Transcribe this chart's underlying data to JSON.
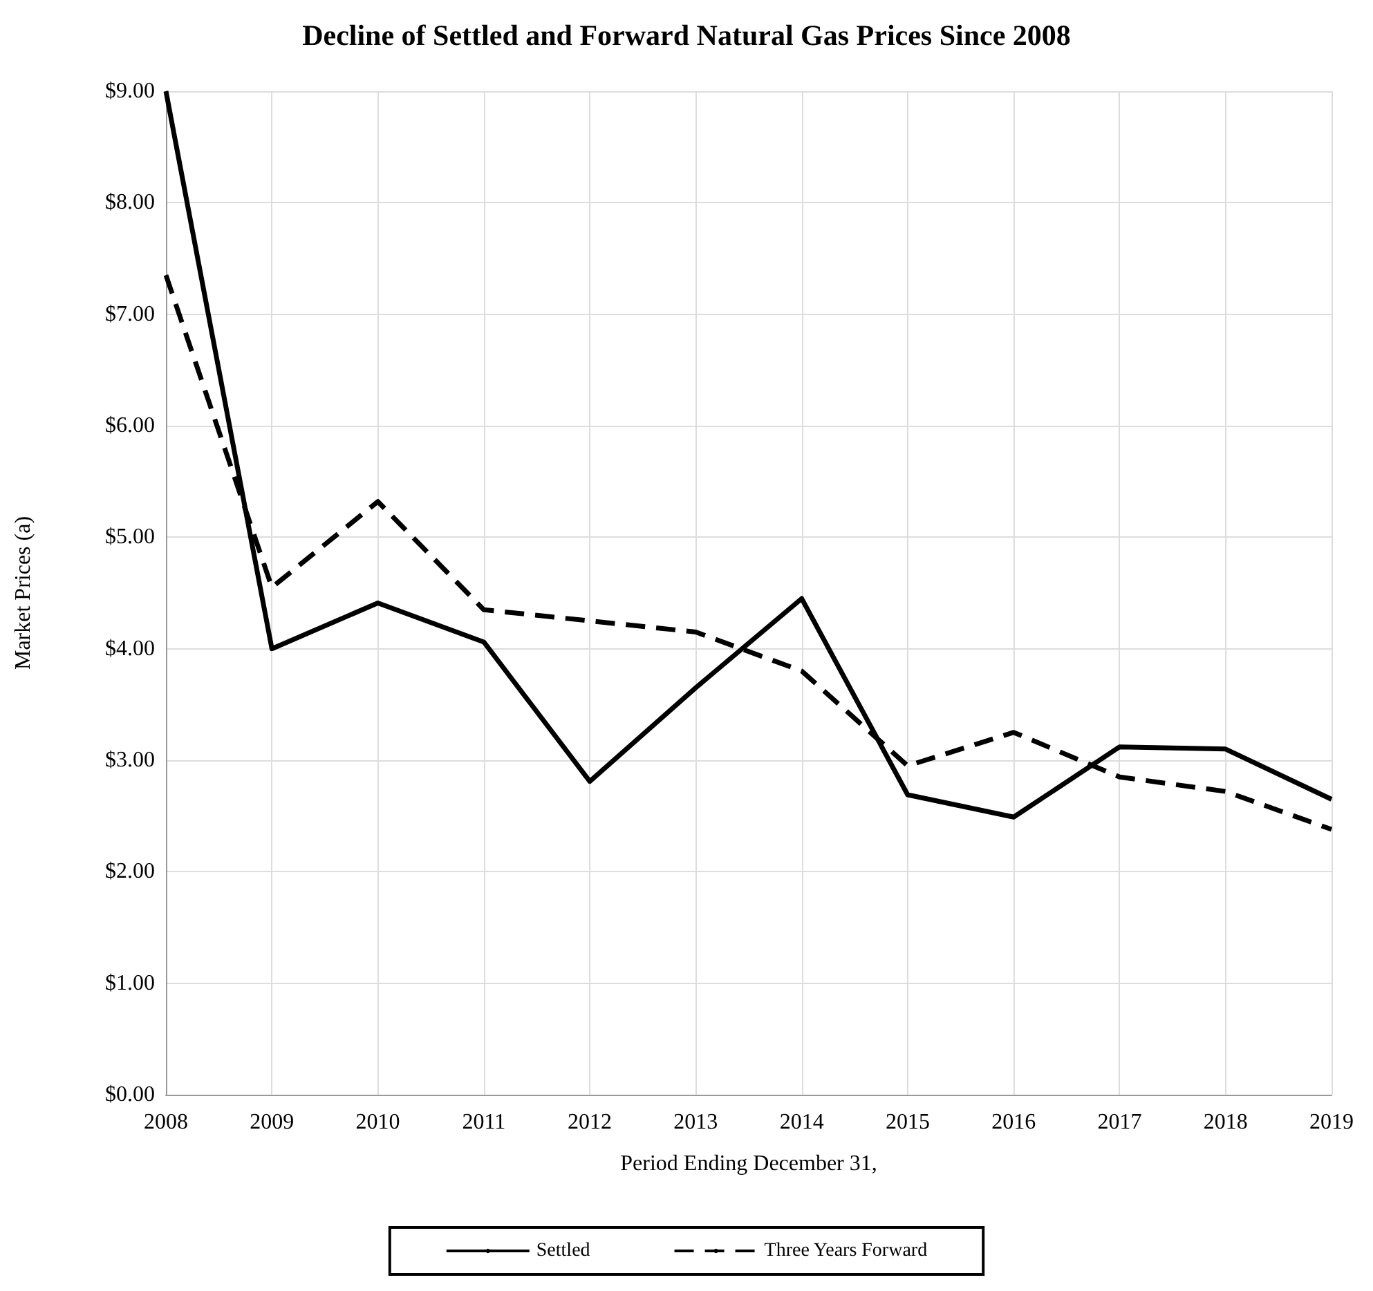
{
  "chart_data": {
    "type": "line",
    "title": "Decline of Settled and Forward Natural Gas Prices Since 2008",
    "xlabel": "Period Ending December 31,",
    "ylabel": "Market Prices (a)",
    "categories": [
      "2008",
      "2009",
      "2010",
      "2011",
      "2012",
      "2013",
      "2014",
      "2015",
      "2016",
      "2017",
      "2018",
      "2019"
    ],
    "series": [
      {
        "name": "Settled",
        "color": "#000000",
        "line_style": "solid",
        "values": [
          9.0,
          4.0,
          4.41,
          4.06,
          2.81,
          3.65,
          4.45,
          2.69,
          2.49,
          3.12,
          3.1,
          2.65
        ]
      },
      {
        "name": "Three Years Forward",
        "color": "#000000",
        "line_style": "dashed",
        "values": [
          7.35,
          4.55,
          5.32,
          4.35,
          4.25,
          4.15,
          3.8,
          2.95,
          3.25,
          2.85,
          2.72,
          2.38
        ]
      }
    ],
    "ylim": [
      0,
      9
    ],
    "yticks": [
      {
        "value": 0,
        "label": "$0.00"
      },
      {
        "value": 1,
        "label": "$1.00"
      },
      {
        "value": 2,
        "label": "$2.00"
      },
      {
        "value": 3,
        "label": "$3.00"
      },
      {
        "value": 4,
        "label": "$4.00"
      },
      {
        "value": 5,
        "label": "$5.00"
      },
      {
        "value": 6,
        "label": "$6.00"
      },
      {
        "value": 7,
        "label": "$7.00"
      },
      {
        "value": 8,
        "label": "$8.00"
      },
      {
        "value": 9,
        "label": "$9.00"
      }
    ],
    "grid": true,
    "legend": "bottom",
    "marker": "none"
  }
}
